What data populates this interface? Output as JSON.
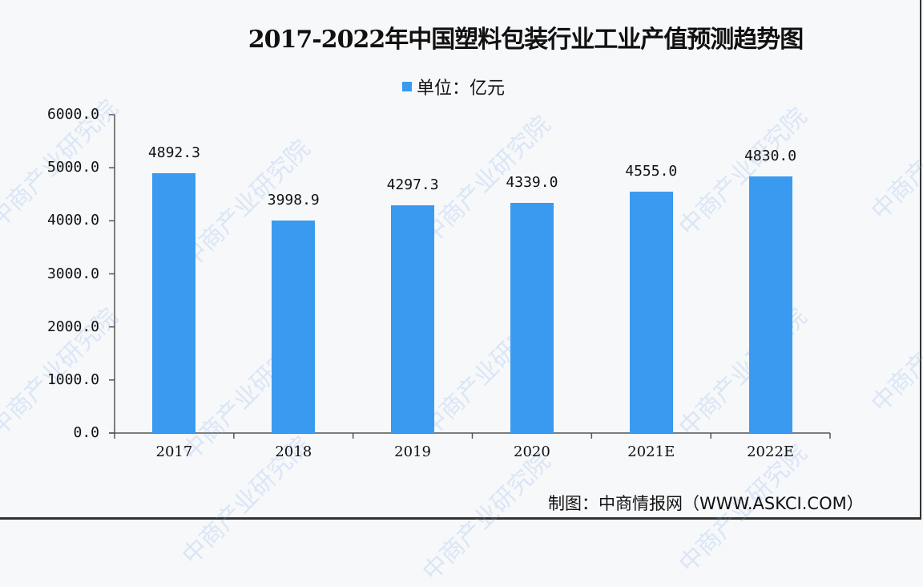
{
  "title": "2017-2022年中国塑料包装行业工业产值预测趋势图",
  "legend": {
    "label": "单位：亿元",
    "color": "#3a9af0"
  },
  "source": "制图：中商情报网（WWW.ASKCI.COM）",
  "watermark": "中商产业研究院",
  "chart_data": {
    "type": "bar",
    "title": "2017-2022年中国塑料包装行业工业产值预测趋势图",
    "xlabel": "",
    "ylabel": "单位：亿元",
    "categories": [
      "2017",
      "2018",
      "2019",
      "2020",
      "2021E",
      "2022E"
    ],
    "values": [
      4892.3,
      3998.9,
      4297.3,
      4339.0,
      4555.0,
      4830.0
    ],
    "value_labels": [
      "4892.3",
      "3998.9",
      "4297.3",
      "4339.0",
      "4555.0",
      "4830.0"
    ],
    "ylim": [
      0,
      6000
    ],
    "yticks": [
      "0.0",
      "1000.0",
      "2000.0",
      "3000.0",
      "4000.0",
      "5000.0",
      "6000.0"
    ],
    "grid": false,
    "legend_position": "top",
    "color": "#3a9af0"
  }
}
